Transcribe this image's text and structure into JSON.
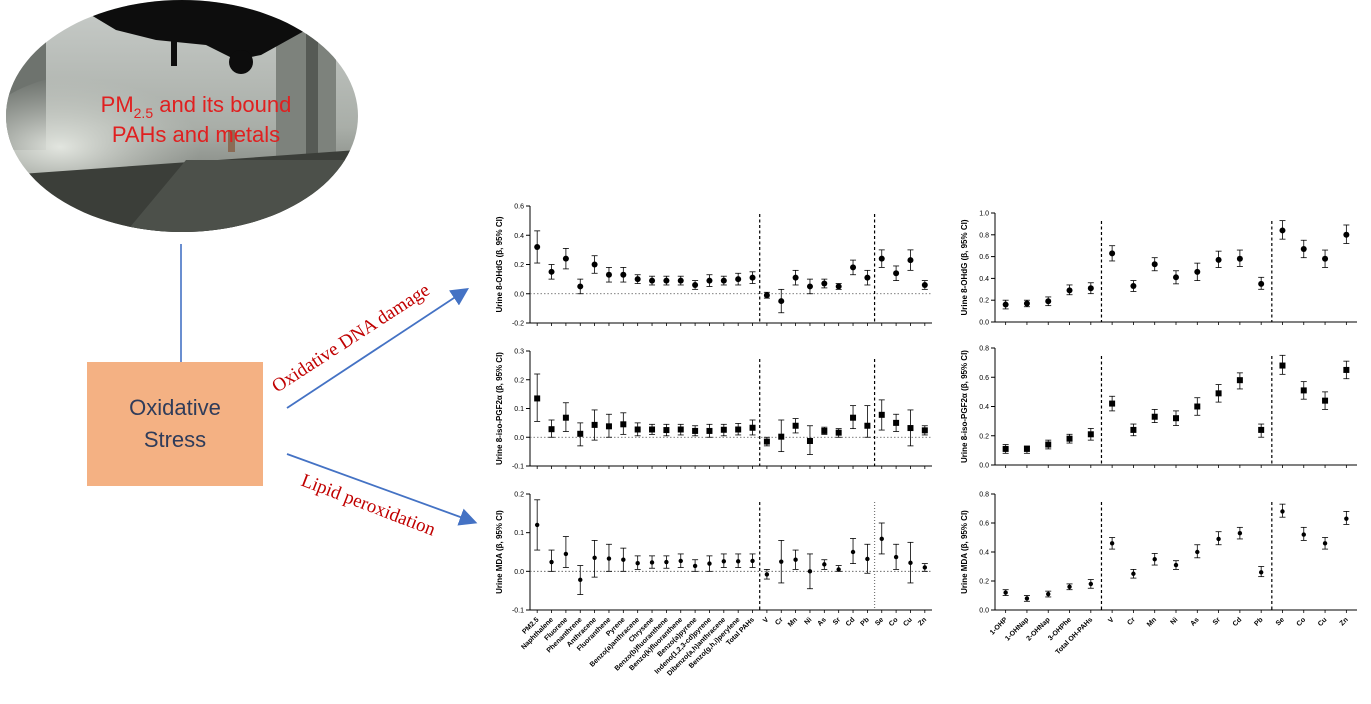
{
  "figure": {
    "photo_caption_line1_main": "PM",
    "photo_caption_line1_sub": "2.5",
    "photo_caption_line1_rest": " and its bound",
    "photo_caption_line2": "PAHs and metals",
    "box_line1": "Oxidative",
    "box_line2": "Stress",
    "arrow_label_top": "Oxidative DNA damage",
    "arrow_label_bottom": "Lipid peroxidation",
    "colors": {
      "box": "#f4b183",
      "arrow": "#4472c4",
      "caption": "#e02020",
      "arrow_text": "#c00000"
    }
  },
  "chart_data": [
    {
      "type": "scatter",
      "ylabel": "Urine 8-OHdG (β, 95% CI)",
      "ylim": [
        -0.2,
        0.6
      ],
      "yticks": [
        "-0.2",
        "0.0",
        "0.2",
        "0.4",
        "0.6"
      ],
      "categories": [
        "PM2.5",
        "Naphthalene",
        "Fluorene",
        "Phenanthrene",
        "Anthracene",
        "Fluoranthene",
        "Pyrene",
        "Benzo(a)anthracene",
        "Chrysene",
        "Benzo(b)fluoranthene",
        "Benzo(k)fluoranthene",
        "Benzo(a)pyrene",
        "Indeno(1,2,3-cd)pyrene",
        "Dibenzo(a,h)anthracene",
        "Benzo(g,h,i)perylene",
        "Total PAHs",
        "V",
        "Cr",
        "Mn",
        "Ni",
        "As",
        "Sr",
        "Cd",
        "Pb",
        "Se",
        "Co",
        "Cu",
        "Zn"
      ],
      "values": [
        0.32,
        0.15,
        0.24,
        0.05,
        0.2,
        0.13,
        0.13,
        0.1,
        0.09,
        0.09,
        0.09,
        0.06,
        0.09,
        0.09,
        0.1,
        0.11,
        -0.01,
        -0.05,
        0.11,
        0.05,
        0.07,
        0.05,
        0.18,
        0.11,
        0.24,
        0.14,
        0.23,
        0.06
      ],
      "ci_low": [
        0.21,
        0.1,
        0.17,
        0.0,
        0.14,
        0.08,
        0.08,
        0.07,
        0.06,
        0.06,
        0.06,
        0.03,
        0.05,
        0.06,
        0.06,
        0.07,
        -0.03,
        -0.13,
        0.06,
        0.0,
        0.04,
        0.03,
        0.13,
        0.06,
        0.18,
        0.09,
        0.16,
        0.03
      ],
      "ci_high": [
        0.43,
        0.2,
        0.31,
        0.1,
        0.26,
        0.18,
        0.18,
        0.13,
        0.12,
        0.12,
        0.12,
        0.09,
        0.13,
        0.12,
        0.14,
        0.15,
        0.01,
        0.03,
        0.16,
        0.1,
        0.1,
        0.07,
        0.23,
        0.16,
        0.3,
        0.19,
        0.3,
        0.09
      ],
      "marker": "circle",
      "dividers_after": [
        15,
        23
      ],
      "divider_styles": [
        "dashed",
        "dashed"
      ]
    },
    {
      "type": "scatter",
      "ylabel": "Urine 8-OHdG (β, 95% CI)",
      "ylim": [
        0.0,
        1.0
      ],
      "yticks": [
        "0.0",
        "0.2",
        "0.4",
        "0.6",
        "0.8",
        "1.0"
      ],
      "categories": [
        "1-OHP",
        "1-OHNap",
        "2-OHNap",
        "3-OHPhe",
        "Total OH-PAHs",
        "V",
        "Cr",
        "Mn",
        "Ni",
        "As",
        "Sr",
        "Cd",
        "Pb",
        "Se",
        "Co",
        "Cu",
        "Zn"
      ],
      "values": [
        0.16,
        0.17,
        0.19,
        0.29,
        0.31,
        0.63,
        0.33,
        0.53,
        0.41,
        0.46,
        0.57,
        0.58,
        0.35,
        0.84,
        0.67,
        0.58,
        0.8
      ],
      "ci_low": [
        0.12,
        0.14,
        0.15,
        0.25,
        0.26,
        0.56,
        0.28,
        0.47,
        0.35,
        0.38,
        0.5,
        0.51,
        0.3,
        0.76,
        0.59,
        0.5,
        0.72
      ],
      "ci_high": [
        0.2,
        0.2,
        0.23,
        0.34,
        0.36,
        0.7,
        0.38,
        0.59,
        0.47,
        0.54,
        0.65,
        0.66,
        0.41,
        0.93,
        0.75,
        0.66,
        0.89
      ],
      "marker": "circle",
      "dividers_after": [
        4,
        12
      ],
      "divider_styles": [
        "dashed",
        "dashed"
      ]
    },
    {
      "type": "scatter",
      "ylabel": "Urine 8-iso-PGF2α (β, 95% CI)",
      "ylim": [
        -0.1,
        0.3
      ],
      "yticks": [
        "-0.1",
        "0.0",
        "0.1",
        "0.2",
        "0.3"
      ],
      "categories": [
        "PM2.5",
        "Naphthalene",
        "Fluorene",
        "Phenanthrene",
        "Anthracene",
        "Fluoranthene",
        "Pyrene",
        "Benzo(a)anthracene",
        "Chrysene",
        "Benzo(b)fluoranthene",
        "Benzo(k)fluoranthene",
        "Benzo(a)pyrene",
        "Indeno(1,2,3-cd)pyrene",
        "Dibenzo(a,h)anthracene",
        "Benzo(g,h,i)perylene",
        "Total PAHs",
        "V",
        "Cr",
        "Mn",
        "Ni",
        "As",
        "Sr",
        "Cd",
        "Pb",
        "Se",
        "Co",
        "Cu",
        "Zn"
      ],
      "values": [
        0.135,
        0.028,
        0.068,
        0.012,
        0.043,
        0.038,
        0.045,
        0.027,
        0.027,
        0.025,
        0.027,
        0.022,
        0.022,
        0.026,
        0.027,
        0.033,
        -0.015,
        0.002,
        0.04,
        -0.013,
        0.022,
        0.016,
        0.068,
        0.04,
        0.078,
        0.05,
        0.032,
        0.024
      ],
      "ci_low": [
        0.055,
        0.0,
        0.02,
        -0.03,
        -0.01,
        0.0,
        0.01,
        0.005,
        0.01,
        0.005,
        0.008,
        0.005,
        0.0,
        0.005,
        0.008,
        0.008,
        -0.03,
        -0.05,
        0.015,
        -0.06,
        0.01,
        0.0,
        0.03,
        0.0,
        0.025,
        0.02,
        -0.03,
        0.008
      ],
      "ci_high": [
        0.22,
        0.06,
        0.12,
        0.05,
        0.095,
        0.08,
        0.085,
        0.05,
        0.045,
        0.045,
        0.045,
        0.04,
        0.045,
        0.045,
        0.048,
        0.06,
        0.0,
        0.06,
        0.065,
        0.04,
        0.035,
        0.03,
        0.11,
        0.11,
        0.13,
        0.08,
        0.095,
        0.04
      ],
      "marker": "square",
      "dividers_after": [
        15,
        23
      ],
      "divider_styles": [
        "dashed",
        "dashed"
      ]
    },
    {
      "type": "scatter",
      "ylabel": "Urine 8-iso-PGF2α (β, 95% CI)",
      "ylim": [
        0.0,
        0.8
      ],
      "yticks": [
        "0.0",
        "0.2",
        "0.4",
        "0.6",
        "0.8"
      ],
      "categories": [
        "1-OHP",
        "1-OHNap",
        "2-OHNap",
        "3-OHPhe",
        "Total OH-PAHs",
        "V",
        "Cr",
        "Mn",
        "Ni",
        "As",
        "Sr",
        "Cd",
        "Pb",
        "Se",
        "Co",
        "Cu",
        "Zn"
      ],
      "values": [
        0.11,
        0.11,
        0.14,
        0.18,
        0.21,
        0.42,
        0.24,
        0.33,
        0.32,
        0.4,
        0.49,
        0.58,
        0.24,
        0.68,
        0.51,
        0.44,
        0.65
      ],
      "ci_low": [
        0.08,
        0.08,
        0.11,
        0.15,
        0.17,
        0.37,
        0.2,
        0.29,
        0.27,
        0.34,
        0.43,
        0.52,
        0.19,
        0.62,
        0.45,
        0.38,
        0.59
      ],
      "ci_high": [
        0.14,
        0.13,
        0.17,
        0.21,
        0.25,
        0.47,
        0.28,
        0.38,
        0.37,
        0.46,
        0.55,
        0.63,
        0.28,
        0.75,
        0.57,
        0.5,
        0.71
      ],
      "marker": "square",
      "dividers_after": [
        4,
        12
      ],
      "divider_styles": [
        "dashed",
        "dashed"
      ]
    },
    {
      "type": "scatter",
      "ylabel": "Urine MDA (β, 95% CI)",
      "ylim": [
        -0.1,
        0.2
      ],
      "yticks": [
        "-0.1",
        "0.0",
        "0.1",
        "0.2"
      ],
      "categories": [
        "PM2.5",
        "Naphthalene",
        "Fluorene",
        "Phenanthrene",
        "Anthracene",
        "Fluoranthene",
        "Pyrene",
        "Benzo(a)anthracene",
        "Chrysene",
        "Benzo(b)fluoranthene",
        "Benzo(k)fluoranthene",
        "Benzo(a)pyrene",
        "Indeno(1,2,3-cd)pyrene",
        "Dibenzo(a,h)anthracene",
        "Benzo(g,h,i)perylene",
        "Total PAHs",
        "V",
        "Cr",
        "Mn",
        "Ni",
        "As",
        "Sr",
        "Cd",
        "Pb",
        "Se",
        "Co",
        "Cu",
        "Zn"
      ],
      "values": [
        0.12,
        0.024,
        0.045,
        -0.022,
        0.035,
        0.033,
        0.03,
        0.021,
        0.023,
        0.024,
        0.027,
        0.014,
        0.02,
        0.026,
        0.026,
        0.027,
        -0.008,
        0.025,
        0.03,
        0.0,
        0.018,
        0.005,
        0.05,
        0.032,
        0.084,
        0.037,
        0.022,
        0.01
      ],
      "ci_low": [
        0.055,
        0.0,
        0.01,
        -0.06,
        -0.015,
        0.0,
        0.0,
        0.005,
        0.008,
        0.008,
        0.01,
        0.0,
        0.0,
        0.01,
        0.01,
        0.01,
        -0.02,
        -0.03,
        0.005,
        -0.045,
        0.005,
        0.0,
        0.02,
        -0.005,
        0.045,
        0.005,
        -0.03,
        0.0
      ],
      "ci_high": [
        0.185,
        0.055,
        0.09,
        0.015,
        0.08,
        0.07,
        0.06,
        0.04,
        0.04,
        0.04,
        0.045,
        0.03,
        0.04,
        0.045,
        0.045,
        0.045,
        0.005,
        0.08,
        0.055,
        0.045,
        0.03,
        0.015,
        0.085,
        0.07,
        0.125,
        0.07,
        0.075,
        0.02
      ],
      "marker": "dot",
      "dividers_after": [
        15,
        23
      ],
      "divider_styles": [
        "dashed",
        "dotted"
      ]
    },
    {
      "type": "scatter",
      "ylabel": "Urine MDA (β, 95% CI)",
      "ylim": [
        0.0,
        0.8
      ],
      "yticks": [
        "0.0",
        "0.2",
        "0.4",
        "0.6",
        "0.8"
      ],
      "categories": [
        "1-OHP",
        "1-OHNap",
        "2-OHNap",
        "3-OHPhe",
        "Total OH-PAHs",
        "V",
        "Cr",
        "Mn",
        "Ni",
        "As",
        "Sr",
        "Cd",
        "Pb",
        "Se",
        "Co",
        "Cu",
        "Zn"
      ],
      "values": [
        0.12,
        0.08,
        0.11,
        0.16,
        0.18,
        0.46,
        0.25,
        0.35,
        0.31,
        0.4,
        0.49,
        0.53,
        0.26,
        0.68,
        0.52,
        0.46,
        0.63
      ],
      "ci_low": [
        0.1,
        0.06,
        0.09,
        0.14,
        0.15,
        0.42,
        0.22,
        0.31,
        0.28,
        0.36,
        0.45,
        0.49,
        0.23,
        0.64,
        0.48,
        0.42,
        0.59
      ],
      "ci_high": [
        0.14,
        0.1,
        0.13,
        0.18,
        0.21,
        0.5,
        0.28,
        0.39,
        0.34,
        0.45,
        0.54,
        0.57,
        0.3,
        0.73,
        0.57,
        0.5,
        0.68
      ],
      "marker": "dot",
      "dividers_after": [
        4,
        12
      ],
      "divider_styles": [
        "dashed",
        "dashed"
      ]
    }
  ]
}
